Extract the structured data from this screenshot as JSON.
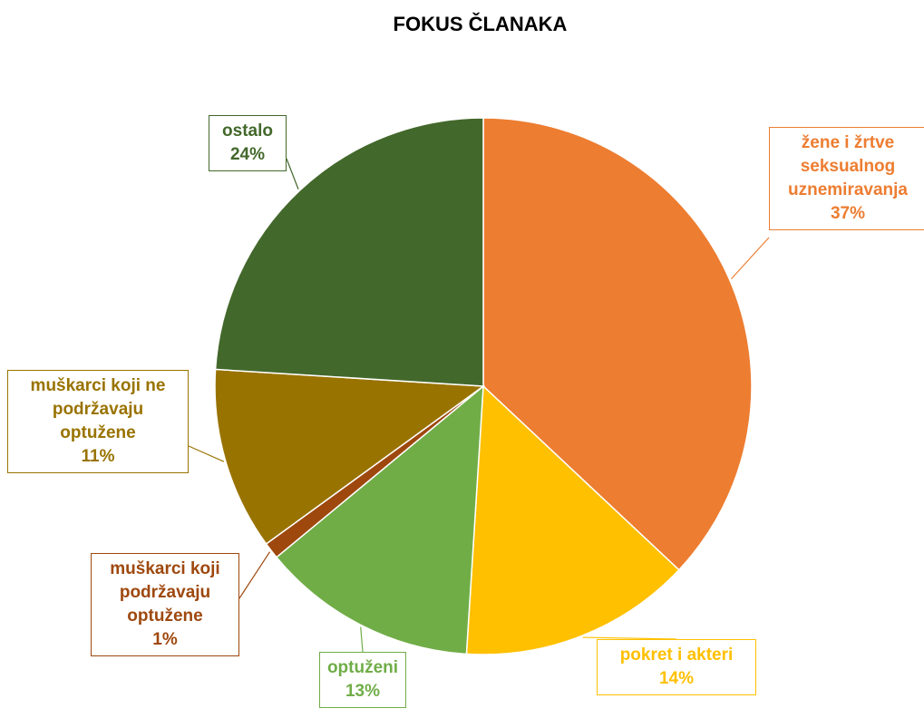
{
  "chart_data": {
    "type": "pie",
    "title": "FOKUS ČLANAKA",
    "slices": [
      {
        "label": "žene i žrtve seksualnog uznemiravanja",
        "value": 37,
        "display": "37%",
        "color": "#ED7D31"
      },
      {
        "label": "pokret i akteri",
        "value": 14,
        "display": "14%",
        "color": "#FFC000"
      },
      {
        "label": "optuženi",
        "value": 13,
        "display": "13%",
        "color": "#70AD47"
      },
      {
        "label": "muškarci koji podržavaju optužene",
        "value": 1,
        "display": "1%",
        "color": "#9E480E"
      },
      {
        "label": "muškarci koji ne podržavaju optužene",
        "value": 11,
        "display": "11%",
        "color": "#997300"
      },
      {
        "label": "ostalo",
        "value": 24,
        "display": "24%",
        "color": "#43682B"
      }
    ]
  }
}
